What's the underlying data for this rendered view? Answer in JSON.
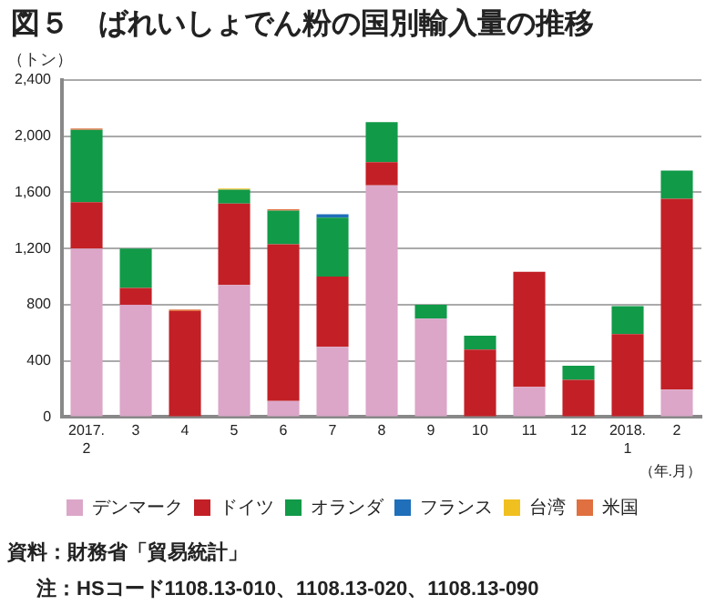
{
  "chart_data": {
    "type": "bar",
    "stacked": true,
    "title": "図５　ばれいしょでん粉の国別輸入量の推移",
    "ylabel": "（トン）",
    "xlabel": "（年.月）",
    "categories": [
      "2017.\n2",
      "3",
      "4",
      "5",
      "6",
      "7",
      "8",
      "9",
      "10",
      "11",
      "12",
      "2018.\n1",
      "2"
    ],
    "series": [
      {
        "name": "デンマーク",
        "color": "#dba6c8",
        "values": [
          1200,
          800,
          0,
          940,
          115,
          500,
          1650,
          700,
          0,
          215,
          0,
          0,
          195
        ]
      },
      {
        "name": "ドイツ",
        "color": "#c22026",
        "values": [
          330,
          120,
          755,
          580,
          1115,
          500,
          165,
          0,
          480,
          820,
          265,
          590,
          1360
        ]
      },
      {
        "name": "オランダ",
        "color": "#119a48",
        "values": [
          515,
          280,
          0,
          100,
          240,
          420,
          285,
          100,
          100,
          0,
          100,
          200,
          200
        ]
      },
      {
        "name": "フランス",
        "color": "#1f6fba",
        "values": [
          0,
          0,
          0,
          0,
          0,
          25,
          0,
          0,
          0,
          0,
          0,
          0,
          0
        ]
      },
      {
        "name": "台湾",
        "color": "#f0c020",
        "values": [
          0,
          0,
          0,
          8,
          0,
          0,
          0,
          0,
          0,
          0,
          0,
          0,
          0
        ]
      },
      {
        "name": "米国",
        "color": "#e07040",
        "values": [
          10,
          0,
          10,
          0,
          10,
          0,
          0,
          0,
          0,
          0,
          0,
          0,
          0
        ]
      }
    ],
    "ylim": [
      0,
      2400
    ],
    "yticks": [
      0,
      400,
      800,
      {
        "value": 1200,
        "label": "1,200"
      },
      {
        "value": 1600,
        "label": "1,600"
      },
      {
        "value": 2000,
        "label": "2,000"
      },
      {
        "value": 2400,
        "label": "2,400"
      }
    ],
    "grid": "y",
    "legend": "bottom",
    "annotations": [
      "資料：財務省「貿易統計」",
      "注：HSコード1108.13-010、1108.13-020、1108.13-090"
    ]
  }
}
